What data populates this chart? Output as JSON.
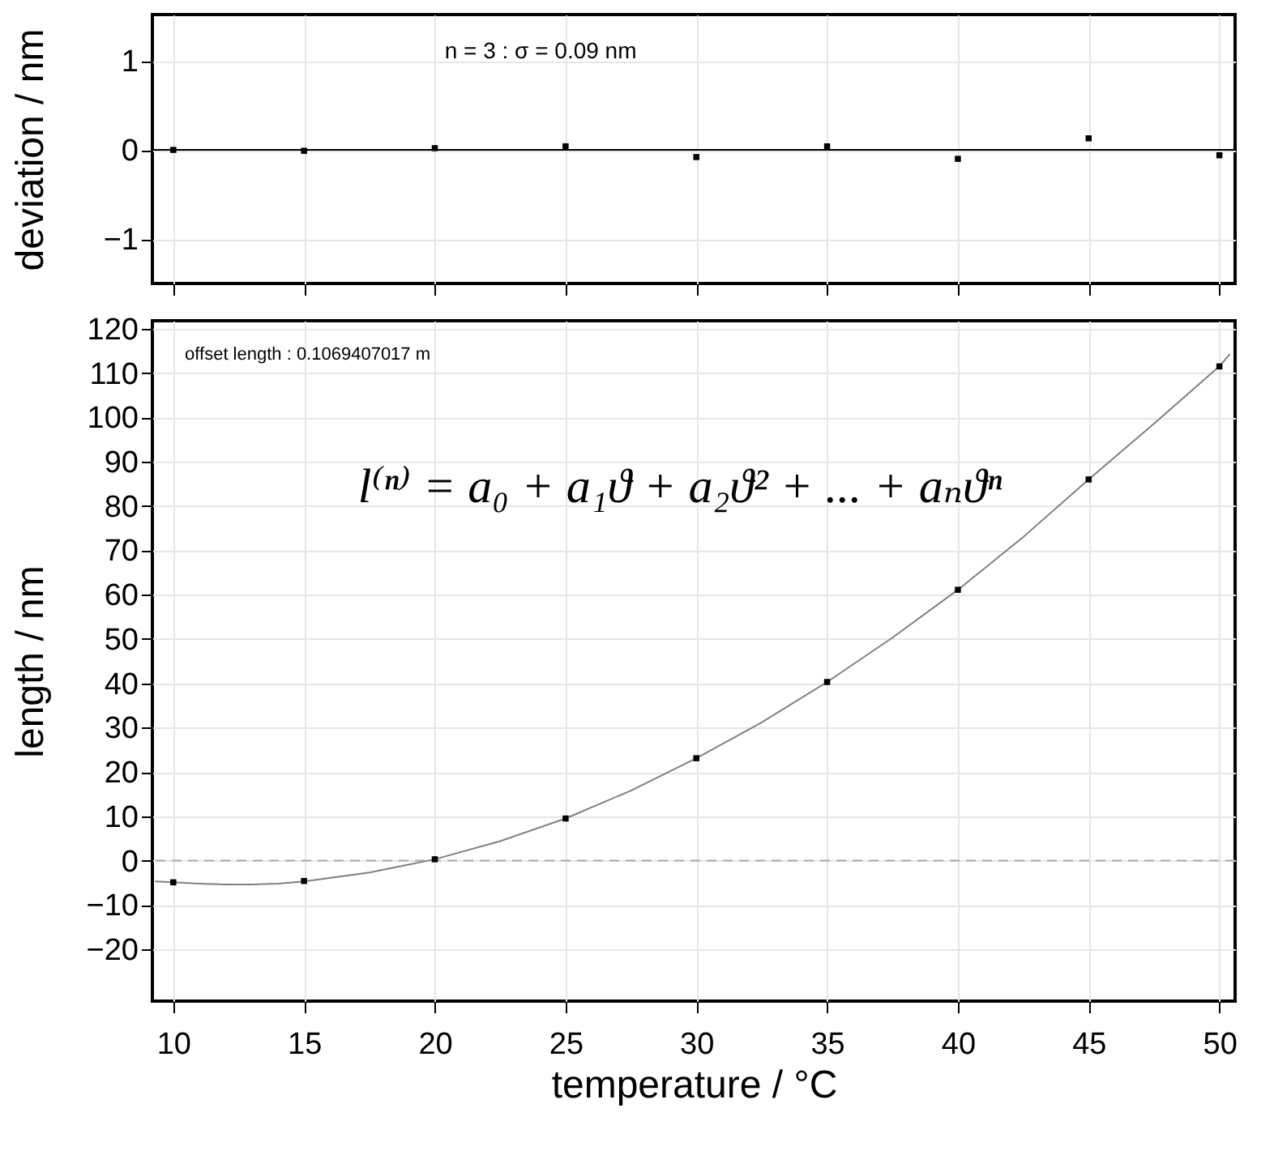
{
  "chart_data": [
    {
      "type": "scatter",
      "ylabel": "deviation / nm",
      "annotations": [
        "n  = 3 :    σ = 0.09 nm"
      ],
      "x": [
        10,
        15,
        20,
        25,
        30,
        35,
        40,
        45,
        50
      ],
      "series": [
        {
          "type": "scatter",
          "color": "#000000",
          "values": [
            0,
            -0.01,
            0.02,
            0.04,
            -0.08,
            0.04,
            -0.1,
            0.13,
            -0.06
          ]
        }
      ],
      "xlim": [
        9.2,
        50.6
      ],
      "xticks": [
        10,
        15,
        20,
        25,
        30,
        35,
        40,
        45,
        50
      ],
      "ylim": [
        -1.5,
        1.52
      ],
      "yticks": [
        -1,
        0,
        1
      ],
      "ref_lines": [
        {
          "axis": "y",
          "value": 0,
          "color": "#000000",
          "line_style": "solid"
        }
      ],
      "grid": true,
      "marker": "square",
      "tick_labels": "y"
    },
    {
      "type": "scatter",
      "xlabel": "temperature / °C",
      "ylabel": "length / nm",
      "annotations": [
        "offset length :   0.1069407017  m",
        "l⁽ⁿ⁾ = a₀ + a₁ϑ + a₂ϑ² + ... + aₙϑⁿ"
      ],
      "x": [
        10,
        15,
        20,
        25,
        30,
        35,
        40,
        45,
        50
      ],
      "series": [
        {
          "type": "line",
          "color": "#808080",
          "marker": "none",
          "x": [
            9.3,
            10,
            11,
            12,
            13,
            14,
            15,
            17.5,
            20,
            22.5,
            25,
            27.5,
            30,
            32.5,
            35,
            37.5,
            40,
            42.5,
            45,
            47.5,
            50,
            50.4
          ],
          "values": [
            -4.7,
            -4.9,
            -5.2,
            -5.4,
            -5.4,
            -5.2,
            -4.7,
            -2.7,
            0.3,
            4.4,
            9.5,
            15.8,
            23.1,
            31.2,
            40.3,
            50.3,
            61.1,
            73.0,
            86.0,
            98.6,
            111.5,
            114.3
          ]
        },
        {
          "type": "scatter",
          "color": "#000000",
          "values": [
            -4.9,
            -4.6,
            0.3,
            9.5,
            23.1,
            40.3,
            61.1,
            86,
            111.5
          ]
        }
      ],
      "xlim": [
        9.2,
        50.6
      ],
      "xticks": [
        10,
        15,
        20,
        25,
        30,
        35,
        40,
        45,
        50
      ],
      "ylim": [
        -31.7,
        121.8
      ],
      "yticks": [
        -20,
        -10,
        0,
        10,
        20,
        30,
        40,
        50,
        60,
        70,
        80,
        90,
        100,
        110,
        120
      ],
      "ref_lines": [
        {
          "axis": "y",
          "value": 0,
          "color": "#aaaaaa",
          "line_style": "dashed"
        }
      ],
      "grid": true,
      "marker": "square"
    }
  ]
}
